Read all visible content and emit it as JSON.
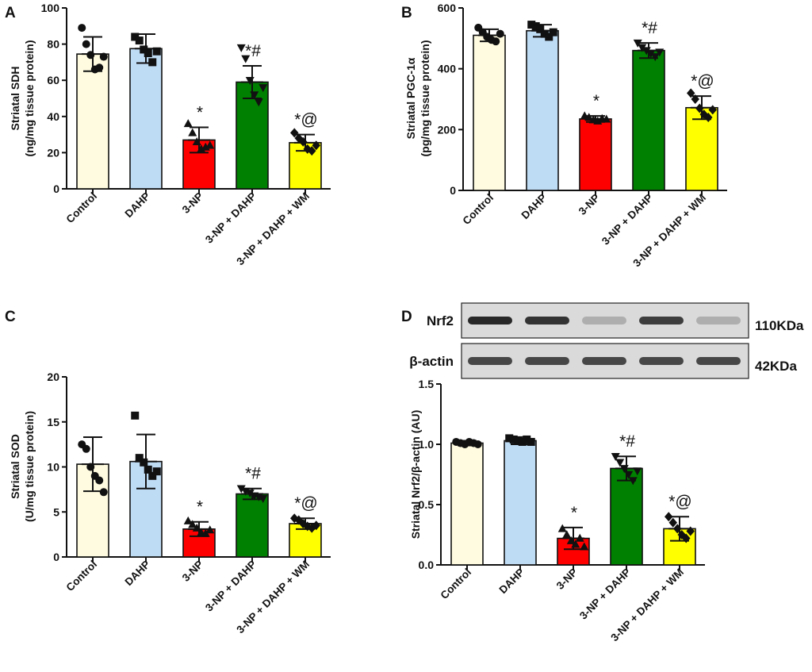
{
  "colors": {
    "control": "#fffbe0",
    "dahp": "#bfdcf5",
    "np3": "#ff0000",
    "np3_dahp": "#008000",
    "np3_dahp_wm": "#ffff00"
  },
  "chart_data": [
    {
      "panel": "A",
      "type": "bar",
      "title": "",
      "ylabel_line1": "Striatal SDH",
      "ylabel_line2": "(ng/mg tissue protein)",
      "ylim": [
        0,
        100
      ],
      "yticks": [
        "0",
        "20",
        "40",
        "60",
        "80",
        "100"
      ],
      "categories": [
        "Control",
        "DAHP",
        "3-NP",
        "3-NP + DAHP",
        "3-NP + DAHP + WM"
      ],
      "values": [
        74.5,
        77.5,
        27,
        59,
        25.5
      ],
      "errors": [
        9.5,
        8,
        7,
        9,
        4.5
      ],
      "points": [
        [
          89,
          80,
          74,
          66,
          67,
          73
        ],
        [
          84,
          82,
          77,
          75,
          70,
          76
        ],
        [
          36,
          31,
          26,
          22,
          23,
          24
        ],
        [
          78,
          72,
          60,
          52,
          48,
          56
        ],
        [
          31,
          28,
          26,
          22,
          21,
          24
        ]
      ],
      "markers": [
        "circle",
        "square",
        "triangle",
        "triangle-down",
        "diamond"
      ],
      "significance": [
        "",
        "",
        "*",
        "*#",
        "*@"
      ]
    },
    {
      "panel": "B",
      "type": "bar",
      "title": "",
      "ylabel_line1": "Striatal PGC-1α",
      "ylabel_line2": "(pg/mg tissue protein)",
      "ylim": [
        0,
        600
      ],
      "yticks": [
        "0",
        "200",
        "400",
        "600"
      ],
      "categories": [
        "Control",
        "DAHP",
        "3-NP",
        "3-NP + DAHP",
        "3-NP + DAHP + WM"
      ],
      "values": [
        510,
        525,
        235,
        460,
        272
      ],
      "errors": [
        20,
        20,
        10,
        25,
        38
      ],
      "points": [
        [
          535,
          520,
          505,
          495,
          490,
          515
        ],
        [
          545,
          540,
          530,
          515,
          505,
          520
        ],
        [
          245,
          240,
          232,
          228,
          236,
          234
        ],
        [
          485,
          470,
          460,
          450,
          440,
          455
        ],
        [
          320,
          300,
          270,
          250,
          240,
          265
        ]
      ],
      "markers": [
        "circle",
        "square",
        "triangle",
        "triangle-down",
        "diamond"
      ],
      "significance": [
        "",
        "",
        "*",
        "*#",
        "*@"
      ]
    },
    {
      "panel": "C",
      "type": "bar",
      "title": "",
      "ylabel_line1": "Striatal SOD",
      "ylabel_line2": "(U/mg tissue protein)",
      "ylim": [
        0,
        20
      ],
      "yticks": [
        "0",
        "5",
        "10",
        "15",
        "20"
      ],
      "categories": [
        "Control",
        "DAHP",
        "3-NP",
        "3-NP + DAHP",
        "3-NP + DAHP + WM"
      ],
      "values": [
        10.3,
        10.6,
        3.1,
        7.0,
        3.7
      ],
      "errors": [
        3.0,
        3.0,
        0.8,
        0.6,
        0.6
      ],
      "points": [
        [
          12.5,
          12.0,
          10.0,
          9.0,
          8.5,
          7.2
        ],
        [
          15.7,
          11.0,
          10.5,
          9.7,
          9.0,
          9.5
        ],
        [
          4.0,
          3.6,
          3.2,
          2.7,
          2.6,
          3.0
        ],
        [
          7.6,
          7.3,
          7.1,
          6.8,
          6.7,
          6.5
        ],
        [
          4.3,
          4.1,
          3.7,
          3.4,
          3.2,
          3.5
        ]
      ],
      "markers": [
        "circle",
        "square",
        "triangle",
        "triangle-down",
        "diamond"
      ],
      "significance": [
        "",
        "",
        "*",
        "*#",
        "*@"
      ]
    },
    {
      "panel": "D",
      "type": "bar",
      "title": "",
      "ylabel_line1": "Striatal Nrf2/β-actin (AU)",
      "ylabel_line2": "",
      "ylim": [
        0,
        1.5
      ],
      "yticks": [
        "0.0",
        "0.5",
        "1.0",
        "1.5"
      ],
      "categories": [
        "Control",
        "DAHP",
        "3-NP",
        "3-NP + DAHP",
        "3-NP + DAHP + WM"
      ],
      "values": [
        1.01,
        1.03,
        0.22,
        0.8,
        0.3
      ],
      "errors": [
        0.02,
        0.03,
        0.09,
        0.1,
        0.1
      ],
      "points": [
        [
          1.02,
          1.01,
          1.0,
          1.02,
          1.01,
          1.0
        ],
        [
          1.05,
          1.04,
          1.03,
          1.02,
          1.04,
          1.02
        ],
        [
          0.3,
          0.25,
          0.2,
          0.17,
          0.22,
          0.15
        ],
        [
          0.9,
          0.85,
          0.8,
          0.75,
          0.7,
          0.78
        ],
        [
          0.4,
          0.35,
          0.3,
          0.25,
          0.22,
          0.28
        ]
      ],
      "markers": [
        "circle",
        "square",
        "triangle",
        "triangle-down",
        "diamond"
      ],
      "significance": [
        "",
        "",
        "*",
        "*#",
        "*@"
      ],
      "blot": {
        "bands": [
          {
            "label": "Nrf2",
            "size": "110KDa",
            "intensities": [
              0.95,
              0.9,
              0.3,
              0.85,
              0.3
            ]
          },
          {
            "label": "β-actin",
            "size": "42KDa",
            "intensities": [
              0.8,
              0.8,
              0.8,
              0.8,
              0.8
            ]
          }
        ]
      }
    }
  ]
}
